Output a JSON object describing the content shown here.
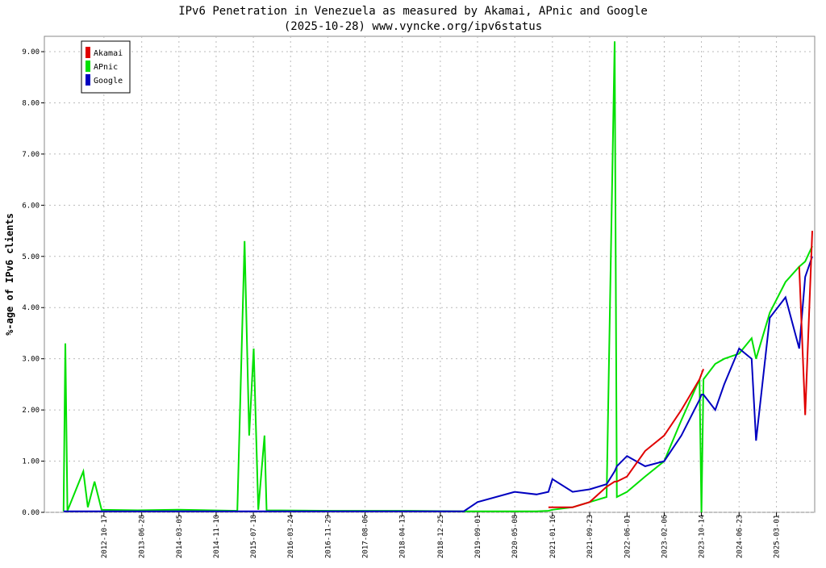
{
  "chart_data": {
    "type": "line",
    "title": "IPv6 Penetration in Venezuela as measured by Akamai, APnic and Google",
    "subtitle": "(2025-10-28) www.vyncke.org/ipv6status",
    "y_label": "%-age of IPv6 clients",
    "x": [
      "2012-01-20",
      "2012-02-01",
      "2012-02-15",
      "2012-06-01",
      "2012-07-01",
      "2012-08-15",
      "2012-10-01",
      "2013-06-01",
      "2014-03-01",
      "2015-04-01",
      "2015-05-20",
      "2015-06-20",
      "2015-07-20",
      "2015-08-20",
      "2015-10-01",
      "2015-10-15",
      "2017-01-01",
      "2018-06-01",
      "2019-06-01",
      "2019-09-01",
      "2020-05-08",
      "2020-10-01",
      "2020-12-20",
      "2021-01-16",
      "2021-06-01",
      "2021-09-23",
      "2022-01-15",
      "2022-03-10",
      "2022-03-25",
      "2022-06-01",
      "2022-10-01",
      "2023-02-06",
      "2023-06-01",
      "2023-10-01",
      "2023-10-14",
      "2023-10-28",
      "2024-01-15",
      "2024-03-15",
      "2024-06-23",
      "2024-09-15",
      "2024-10-15",
      "2025-01-15",
      "2025-05-01",
      "2025-08-01",
      "2025-09-10",
      "2025-10-28"
    ],
    "series": [
      {
        "name": "Akamai",
        "color": "#e00000",
        "values": [
          null,
          null,
          null,
          null,
          null,
          null,
          null,
          null,
          null,
          null,
          null,
          null,
          null,
          null,
          null,
          null,
          null,
          null,
          null,
          null,
          null,
          null,
          0.1,
          0.1,
          0.1,
          0.2,
          0.5,
          0.6,
          0.6,
          0.7,
          1.2,
          1.5,
          2.0,
          2.6,
          2.7,
          2.8,
          null,
          null,
          null,
          null,
          null,
          null,
          null,
          4.8,
          1.9,
          5.5
        ]
      },
      {
        "name": "APnic",
        "color": "#00e000",
        "values": [
          0.02,
          3.3,
          0.03,
          0.8,
          0.1,
          0.6,
          0.05,
          0.04,
          0.05,
          0.03,
          5.3,
          1.5,
          3.2,
          0.05,
          1.5,
          0.04,
          0.03,
          0.03,
          0.02,
          0.02,
          0.02,
          0.02,
          0.03,
          0.05,
          0.1,
          0.2,
          0.3,
          9.2,
          0.3,
          0.4,
          0.7,
          1.0,
          1.8,
          2.6,
          0,
          2.6,
          2.9,
          3.0,
          3.1,
          3.4,
          3.0,
          3.9,
          4.5,
          4.8,
          4.9,
          5.2
        ]
      },
      {
        "name": "Google",
        "color": "#0000c0",
        "values": [
          0.02,
          0.02,
          0.02,
          0.02,
          0.02,
          0.02,
          0.02,
          0.02,
          0.02,
          0.02,
          0.02,
          0.02,
          0.02,
          0.02,
          0.02,
          0.02,
          0.02,
          0.02,
          0.02,
          0.2,
          0.4,
          0.35,
          0.4,
          0.65,
          0.4,
          0.45,
          0.55,
          0.8,
          0.9,
          1.1,
          0.9,
          1.0,
          1.5,
          2.2,
          2.3,
          2.3,
          2.0,
          2.5,
          3.2,
          3.0,
          1.4,
          3.8,
          4.2,
          3.2,
          4.6,
          5.0
        ]
      }
    ],
    "xlim": [
      "2011-09-13",
      "2025-11-13"
    ],
    "xticks": [
      "2012-10-17",
      "2013-06-28",
      "2014-03-05",
      "2014-11-10",
      "2015-07-18",
      "2016-03-24",
      "2016-11-29",
      "2017-08-06",
      "2018-04-13",
      "2018-12-25",
      "2019-09-01",
      "2020-05-08",
      "2021-01-16",
      "2021-09-23",
      "2022-06-01",
      "2023-02-06",
      "2023-10-14",
      "2024-06-23",
      "2025-03-01"
    ],
    "ylim": [
      0,
      9.3
    ],
    "yticks": [
      {
        "value": 0,
        "label": "0.00"
      },
      {
        "value": 1,
        "label": "1.00"
      },
      {
        "value": 2,
        "label": "2.00"
      },
      {
        "value": 3,
        "label": "3.00"
      },
      {
        "value": 4,
        "label": "4.00"
      },
      {
        "value": 5,
        "label": "5.00"
      },
      {
        "value": 6,
        "label": "6.00"
      },
      {
        "value": 7,
        "label": "7.00"
      },
      {
        "value": 8,
        "label": "8.00"
      },
      {
        "value": 9,
        "label": "9.00"
      }
    ],
    "grid": true,
    "legend": "upper left"
  }
}
